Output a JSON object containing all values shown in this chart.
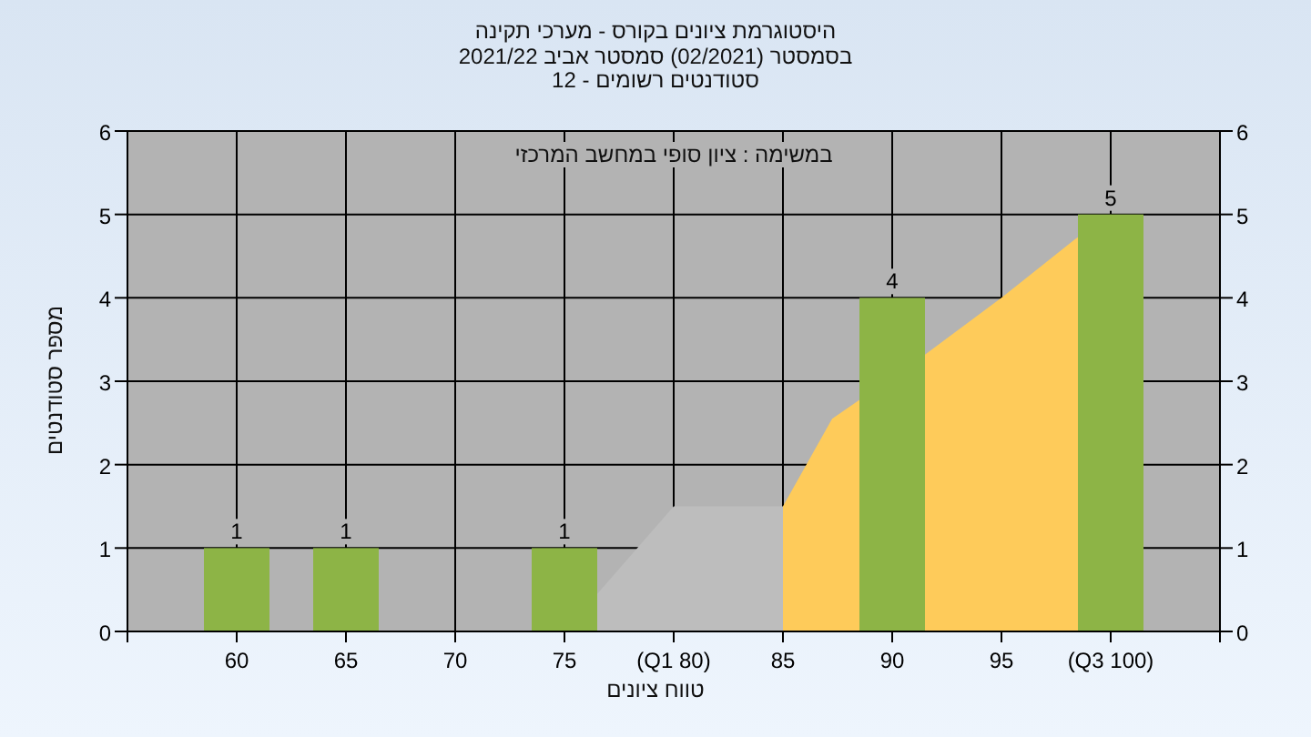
{
  "chart_data": {
    "type": "bar",
    "title": "היסטוגרמת ציונים בקורס - מערכי תקינה",
    "subtitle": "בסמסטר (02/2021) סמסטר אביב 2021/22\nסטודנטים רשומים - 12",
    "xlabel": "טווח ציונים",
    "ylabel": "מספר סטודנטים",
    "annotations": [
      "במשימה : ציון סופי במחשב המרכזי"
    ],
    "x": [
      60,
      65,
      70,
      75,
      80,
      85,
      90,
      95,
      100
    ],
    "xlim": [
      55,
      105
    ],
    "xticks": [
      {
        "value": 55,
        "label": null
      },
      60,
      65,
      70,
      75,
      {
        "value": 80,
        "label": "(Q1 80)"
      },
      85,
      90,
      95,
      {
        "value": 100,
        "label": "(Q3 100)"
      },
      {
        "value": 105,
        "label": null
      }
    ],
    "ylim": [
      0,
      6
    ],
    "yticks": [
      0,
      1,
      2,
      3,
      4,
      5,
      6
    ],
    "y2lim": [
      0,
      6
    ],
    "y2ticks": [
      0,
      1,
      2,
      3,
      4,
      5,
      6
    ],
    "grid": true,
    "series": [
      {
        "type": "area",
        "color": "#bdbdbd",
        "x": [
          75,
          80,
          85
        ],
        "values": [
          0,
          1.5,
          1.5
        ]
      },
      {
        "type": "area",
        "color": "#fecb5a",
        "x": [
          85,
          87.25,
          91.5,
          95,
          98.35,
          100
        ],
        "values": [
          1.5,
          2.55,
          3.32,
          4.0,
          4.7,
          5.0
        ]
      },
      {
        "type": "bar",
        "color": "#8db446",
        "values": [
          1,
          1,
          0,
          1,
          0,
          0,
          4,
          0,
          5
        ],
        "value_labels": [
          "1",
          "1",
          null,
          "1",
          null,
          null,
          "4",
          null,
          "5"
        ]
      }
    ]
  }
}
